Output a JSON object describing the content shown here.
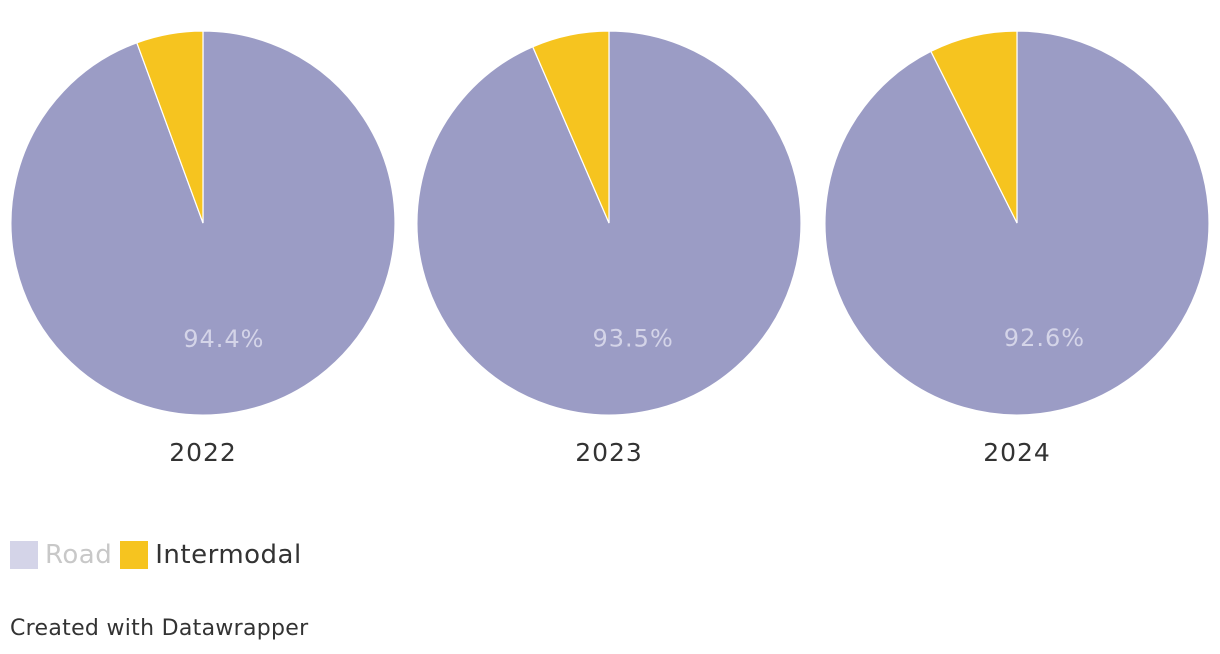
{
  "chart_data": {
    "type": "pie",
    "pies": [
      {
        "label": "2022",
        "slices": [
          {
            "name": "Road",
            "value": 94.4,
            "label": "94.4%"
          },
          {
            "name": "Intermodal",
            "value": 5.6
          }
        ]
      },
      {
        "label": "2023",
        "slices": [
          {
            "name": "Road",
            "value": 93.5,
            "label": "93.5%"
          },
          {
            "name": "Intermodal",
            "value": 6.5
          }
        ]
      },
      {
        "label": "2024",
        "slices": [
          {
            "name": "Road",
            "value": 92.6,
            "label": "92.6%"
          },
          {
            "name": "Intermodal",
            "value": 7.4
          }
        ]
      }
    ],
    "legend": [
      {
        "name": "Road",
        "color": "#9b9cc5",
        "state": "muted"
      },
      {
        "name": "Intermodal",
        "color": "#f6c41f",
        "state": "active"
      }
    ],
    "legend_placement": "bottom-left"
  },
  "colors": {
    "road": "#9b9cc5",
    "intermodal": "#f6c41f"
  },
  "credit": "Created with Datawrapper"
}
